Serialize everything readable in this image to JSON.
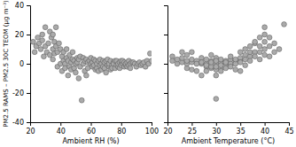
{
  "chart_data": [
    {
      "type": "scatter",
      "xlabel": "Ambient RH (%)",
      "ylabel": "PM2.5 RAMS – PM2.5 30C TEOM (μg m⁻³)",
      "xlim": [
        20,
        100
      ],
      "xticks": [
        20,
        40,
        60,
        80,
        100
      ],
      "ylim": [
        -40,
        40
      ],
      "yticks": [
        -40,
        -20,
        0,
        20,
        40
      ],
      "marker": "circle",
      "color": "#aaaaaa",
      "grid": false,
      "x": [
        22,
        23,
        24,
        25,
        26,
        27,
        28,
        28,
        29,
        30,
        30,
        31,
        32,
        33,
        33,
        34,
        35,
        35,
        35,
        36,
        36,
        37,
        37,
        38,
        38,
        39,
        40,
        40,
        41,
        41,
        42,
        42,
        43,
        43,
        44,
        44,
        45,
        45,
        46,
        46,
        47,
        47,
        48,
        48,
        49,
        49,
        50,
        50,
        51,
        51,
        52,
        52,
        53,
        53,
        54,
        55,
        55,
        56,
        56,
        57,
        57,
        58,
        58,
        59,
        60,
        60,
        61,
        61,
        62,
        62,
        63,
        63,
        64,
        64,
        65,
        65,
        66,
        66,
        67,
        67,
        68,
        68,
        69,
        69,
        70,
        70,
        71,
        71,
        72,
        72,
        73,
        73,
        74,
        74,
        75,
        75,
        76,
        76,
        77,
        77,
        78,
        78,
        79,
        79,
        80,
        80,
        81,
        81,
        82,
        82,
        83,
        83,
        84,
        84,
        85,
        85,
        86,
        86,
        87,
        88,
        89,
        90,
        91,
        92,
        93,
        94,
        95,
        96,
        97,
        98,
        99,
        100
      ],
      "values": [
        15,
        8,
        12,
        18,
        14,
        10,
        16,
        20,
        5,
        12,
        25,
        8,
        14,
        22,
        6,
        18,
        10,
        3,
        20,
        15,
        7,
        12,
        25,
        -2,
        8,
        14,
        0,
        10,
        -5,
        5,
        2,
        8,
        0,
        -3,
        10,
        4,
        -8,
        2,
        -2,
        6,
        1,
        -4,
        3,
        8,
        -3,
        2,
        0,
        -6,
        4,
        1,
        -10,
        3,
        -2,
        5,
        -25,
        0,
        4,
        -5,
        2,
        -8,
        3,
        1,
        -3,
        2,
        0,
        4,
        -2,
        1,
        3,
        -1,
        -4,
        2,
        -3,
        0,
        2,
        -5,
        -1,
        3,
        0,
        -4,
        2,
        -2,
        -3,
        1,
        -6,
        2,
        -1,
        3,
        -2,
        0,
        -4,
        2,
        -1,
        -3,
        1,
        0,
        2,
        -3,
        -1,
        2,
        -2,
        0,
        1,
        -3,
        2,
        -1,
        0,
        2,
        -2,
        1,
        -1,
        0,
        -2,
        1,
        2,
        -1,
        0,
        -3,
        1,
        1,
        0,
        -2,
        0,
        1,
        -1,
        0,
        1,
        -2,
        2,
        0,
        7,
        2
      ]
    },
    {
      "type": "scatter",
      "xlabel": "Ambient Temperature (°C)",
      "xlim": [
        20,
        45
      ],
      "xticks": [
        20,
        25,
        30,
        35,
        40,
        45
      ],
      "ylim": [
        -40,
        40
      ],
      "yticks": [
        -40,
        -20,
        0,
        20,
        40
      ],
      "tick_labels": "x",
      "marker": "circle",
      "color": "#aaaaaa",
      "grid": false,
      "x": [
        21,
        21,
        22,
        22,
        23,
        23,
        23,
        24,
        24,
        24,
        24,
        25,
        25,
        25,
        25,
        26,
        26,
        26,
        27,
        27,
        27,
        27,
        28,
        28,
        28,
        28,
        28,
        29,
        29,
        29,
        29,
        29,
        30,
        30,
        30,
        30,
        30,
        30,
        30,
        31,
        31,
        31,
        31,
        31,
        32,
        32,
        32,
        32,
        33,
        33,
        33,
        33,
        33,
        34,
        34,
        34,
        34,
        35,
        35,
        35,
        35,
        35,
        36,
        36,
        36,
        36,
        37,
        37,
        37,
        37,
        38,
        38,
        38,
        38,
        39,
        39,
        39,
        39,
        40,
        40,
        40,
        40,
        40,
        41,
        41,
        41,
        42,
        42,
        43,
        44
      ],
      "values": [
        5,
        2,
        0,
        3,
        8,
        1,
        4,
        -3,
        6,
        0,
        2,
        -4,
        1,
        8,
        3,
        -5,
        2,
        0,
        0,
        -8,
        4,
        1,
        -2,
        -5,
        0,
        3,
        -1,
        -3,
        2,
        6,
        -2,
        1,
        -24,
        0,
        -4,
        4,
        -2,
        -8,
        2,
        -3,
        1,
        -1,
        3,
        -5,
        0,
        2,
        -3,
        1,
        -1,
        3,
        0,
        -2,
        5,
        -4,
        2,
        0,
        3,
        -5,
        2,
        4,
        8,
        1,
        6,
        -1,
        3,
        10,
        5,
        8,
        2,
        12,
        8,
        14,
        5,
        15,
        8,
        12,
        18,
        3,
        10,
        20,
        15,
        6,
        25,
        12,
        18,
        5,
        14,
        8,
        10,
        27
      ]
    }
  ]
}
